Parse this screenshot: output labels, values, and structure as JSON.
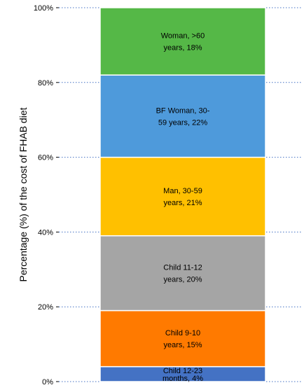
{
  "chart_data": {
    "type": "bar",
    "stacked": true,
    "orientation": "vertical",
    "ylabel": "Percentage (%) of the cost of FHAB diet",
    "ylim": [
      0,
      100
    ],
    "y_ticks": [
      "0%",
      "20%",
      "40%",
      "60%",
      "80%",
      "100%"
    ],
    "y_tick_values": [
      0,
      20,
      40,
      60,
      80,
      100
    ],
    "grid": true,
    "segments": [
      {
        "label_lines": [
          "Child 12-23",
          "months, 4%"
        ],
        "value": 4,
        "color": "#4472C4"
      },
      {
        "label_lines": [
          "Child 9-10",
          "years, 15%"
        ],
        "value": 15,
        "color": "#FF7A00"
      },
      {
        "label_lines": [
          "Child 11-12",
          "years, 20%"
        ],
        "value": 20,
        "color": "#A5A5A5"
      },
      {
        "label_lines": [
          "Man, 30-59",
          "years, 21%"
        ],
        "value": 21,
        "color": "#FFC000"
      },
      {
        "label_lines": [
          "BF Woman, 30-",
          "59 years, 22%"
        ],
        "value": 22,
        "color": "#4E9ADB"
      },
      {
        "label_lines": [
          "Woman, >60",
          "years, 18%"
        ],
        "value": 18,
        "color": "#55B847"
      }
    ]
  }
}
